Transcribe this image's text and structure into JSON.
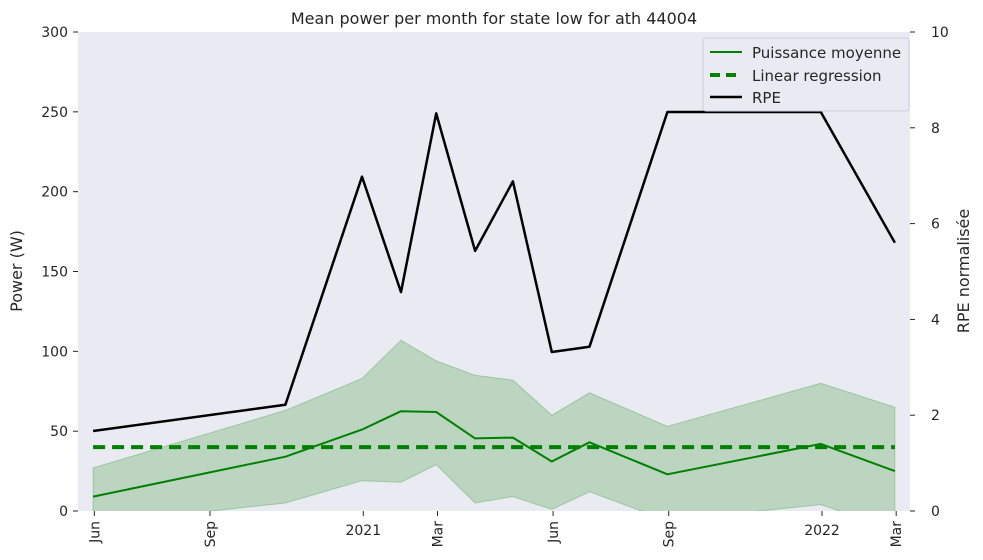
{
  "chart_data": {
    "type": "line",
    "title": "Mean power per month for state low for ath 44004",
    "ylabel": "Power (W)",
    "y2label": "RPE normalisée",
    "ylim": [
      0,
      300
    ],
    "y2lim": [
      0,
      10
    ],
    "yticks": [
      0,
      50,
      100,
      150,
      200,
      250,
      300
    ],
    "y2ticks": [
      0,
      2,
      4,
      6,
      8,
      10
    ],
    "xlim": [
      "2020-05-19",
      "2022-03-12"
    ],
    "xticks": [
      {
        "date": "2020-06-01",
        "label": "Jun"
      },
      {
        "date": "2020-09-01",
        "label": "Sep"
      },
      {
        "date": "2021-01-01",
        "label": "2021"
      },
      {
        "date": "2021-03-01",
        "label": "Mar"
      },
      {
        "date": "2021-06-01",
        "label": "Jun"
      },
      {
        "date": "2021-09-01",
        "label": "Sep"
      },
      {
        "date": "2022-01-01",
        "label": "2022"
      },
      {
        "date": "2022-03-01",
        "label": "Mar"
      }
    ],
    "grid": false,
    "legend_position": "top-right",
    "x": [
      "2020-05-31",
      "2020-10-31",
      "2020-12-31",
      "2021-01-31",
      "2021-02-28",
      "2021-03-31",
      "2021-04-30",
      "2021-05-31",
      "2021-06-30",
      "2021-08-31",
      "2021-12-31",
      "2022-02-28"
    ],
    "series": [
      {
        "name": "Puissance moyenne",
        "axis": "left",
        "color": "#008000",
        "style": "solid",
        "values": [
          9,
          34,
          51,
          62.5,
          62,
          45.5,
          46,
          31,
          43,
          23,
          42,
          25
        ]
      },
      {
        "name": "Linear regression",
        "axis": "left",
        "color": "#008000",
        "style": "dashed",
        "values": [
          40,
          40,
          40,
          40,
          40,
          40,
          40,
          40,
          40,
          40,
          40,
          40
        ]
      },
      {
        "name": "RPE",
        "axis": "right",
        "color": "#000000",
        "style": "solid",
        "values": [
          1.67,
          2.22,
          6.98,
          4.57,
          8.3,
          5.43,
          6.88,
          3.32,
          3.43,
          8.33,
          8.33,
          5.6
        ]
      }
    ],
    "band": {
      "axis": "left",
      "color": "#008000",
      "upper": [
        27,
        63,
        83,
        107,
        94,
        85,
        82,
        60,
        74,
        53,
        80,
        65
      ],
      "lower": [
        -8,
        5,
        19,
        18,
        29,
        5,
        9,
        1,
        12,
        -6,
        4,
        -12
      ]
    }
  }
}
